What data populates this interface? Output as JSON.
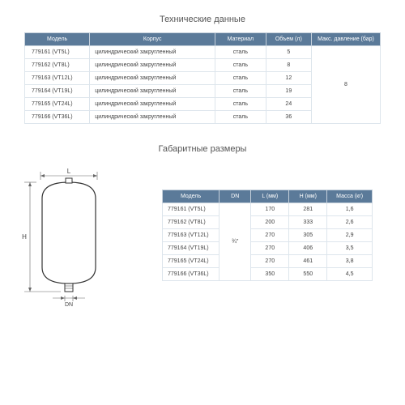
{
  "titles": {
    "tech": "Технические данные",
    "dims": "Габаритные размеры"
  },
  "tech_table": {
    "columns": [
      "Модель",
      "Корпус",
      "Материал",
      "Объем (л)",
      "Макс. давление (бар)"
    ],
    "rows": [
      [
        "779161 (VT5L)",
        "цилиндрический закругленный",
        "сталь",
        "5"
      ],
      [
        "779162 (VT8L)",
        "цилиндрический закругленный",
        "сталь",
        "8"
      ],
      [
        "779163 (VT12L)",
        "цилиндрический закругленный",
        "сталь",
        "12"
      ],
      [
        "779164 (VT19L)",
        "цилиндрический закругленный",
        "сталь",
        "19"
      ],
      [
        "779165 (VT24L)",
        "цилиндрический закругленный",
        "сталь",
        "24"
      ],
      [
        "779166 (VT36L)",
        "цилиндрический закругленный",
        "сталь",
        "36"
      ]
    ],
    "pressure": "8",
    "col_widths": [
      "80px",
      "170px",
      "55px",
      "50px",
      "85px"
    ]
  },
  "dim_table": {
    "columns": [
      "Модель",
      "DN",
      "L (мм)",
      "H (мм)",
      "Масса (кг)"
    ],
    "rows": [
      [
        "779161 (VT5L)",
        "170",
        "281",
        "1,6"
      ],
      [
        "779162 (VT8L)",
        "200",
        "333",
        "2,6"
      ],
      [
        "779163 (VT12L)",
        "270",
        "305",
        "2,9"
      ],
      [
        "779164 (VT19L)",
        "270",
        "406",
        "3,5"
      ],
      [
        "779165 (VT24L)",
        "270",
        "461",
        "3,8"
      ],
      [
        "779166 (VT36L)",
        "350",
        "550",
        "4,5"
      ]
    ],
    "dn": "¾\"",
    "col_widths": [
      "75px",
      "35px",
      "45px",
      "45px",
      "55px"
    ]
  },
  "diagram": {
    "labels": {
      "L": "L",
      "H": "H",
      "DN": "DN"
    },
    "colors": {
      "stroke": "#333333",
      "fill": "#ffffff",
      "dim": "#666666"
    }
  },
  "style": {
    "header_bg": "#5b7a99",
    "header_fg": "#ffffff",
    "border": "#dde5ec"
  }
}
